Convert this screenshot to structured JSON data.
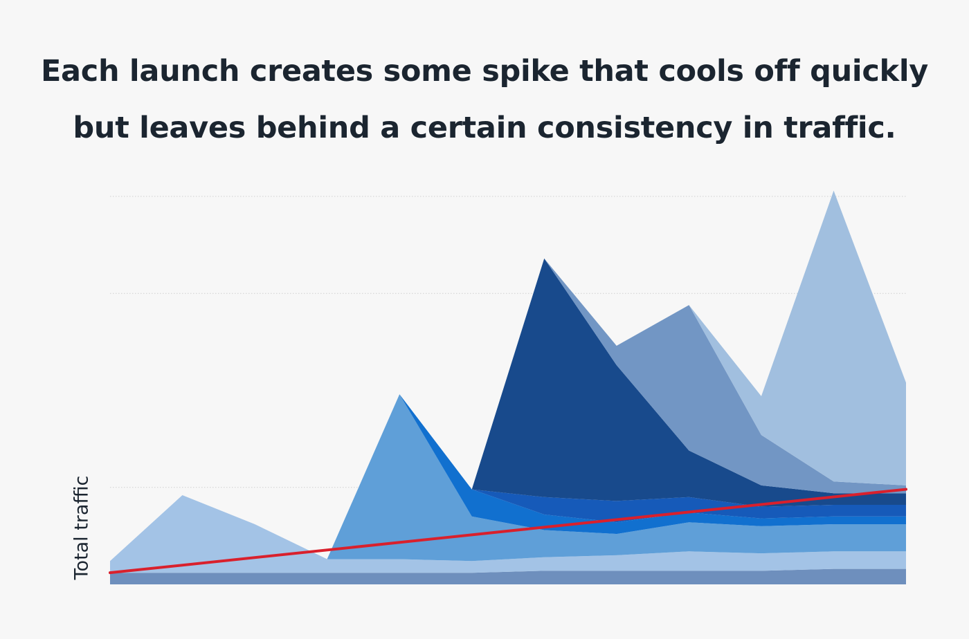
{
  "title": {
    "line1": "Each launch creates some spike that cools off quickly",
    "line2": "but leaves behind a certain consistency in traffic."
  },
  "chart_data": {
    "type": "area",
    "stacked": true,
    "title": "Each launch creates some spike that cools off quickly but leaves behind a certain consistency in traffic.",
    "xlabel": "",
    "ylabel": "Total traffic",
    "ylim": [
      0,
      200
    ],
    "yticks": [
      50,
      150,
      200
    ],
    "grid": "horizontal-dotted",
    "legend": "none",
    "x": [
      0,
      1,
      2,
      3,
      4,
      5,
      6,
      7,
      8,
      9,
      10,
      11
    ],
    "series": [
      {
        "color": "#6e8fbd",
        "values": [
          6,
          6,
          6,
          6,
          6,
          6,
          7,
          7,
          7,
          7,
          8,
          8
        ]
      },
      {
        "color": "#a3c3e6",
        "values": [
          6,
          40,
          25,
          7,
          7,
          6,
          7,
          8,
          10,
          9,
          9,
          9
        ]
      },
      {
        "color": "#5f9fd8",
        "values": [
          0,
          0,
          0,
          0,
          85,
          23,
          14,
          11,
          15,
          14,
          14,
          14
        ]
      },
      {
        "color": "#1170cf",
        "values": [
          0,
          0,
          0,
          0,
          0,
          14,
          8,
          6,
          5,
          4,
          4,
          4
        ]
      },
      {
        "color": "#165ab9",
        "values": [
          0,
          0,
          0,
          0,
          0,
          0,
          9,
          11,
          8,
          6,
          6,
          6
        ]
      },
      {
        "color": "#184a8c",
        "values": [
          0,
          0,
          0,
          0,
          0,
          0,
          123,
          70,
          24,
          11,
          6,
          6
        ]
      },
      {
        "color": "#7296c4",
        "values": [
          0,
          0,
          0,
          0,
          0,
          0,
          0,
          10,
          75,
          26,
          6,
          4
        ]
      },
      {
        "color": "#a1bfdf",
        "values": [
          0,
          0,
          0,
          0,
          0,
          0,
          0,
          0,
          0,
          20,
          150,
          53
        ]
      }
    ],
    "trend_line": {
      "color": "#d9202c",
      "x": [
        0,
        11
      ],
      "values": [
        6,
        49
      ]
    }
  }
}
